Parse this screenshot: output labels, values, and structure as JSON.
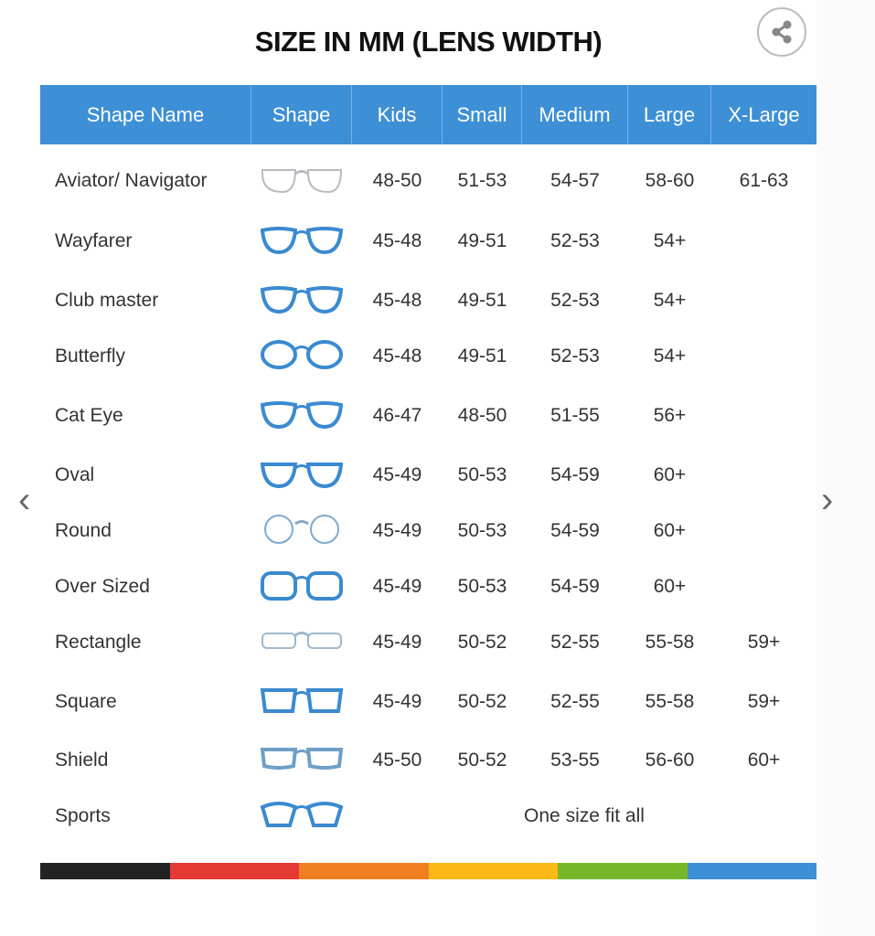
{
  "title": "SIZE IN MM (LENS WIDTH)",
  "share_icon": "share-icon",
  "columns": [
    "Shape Name",
    "Shape",
    "Kids",
    "Small",
    "Medium",
    "Large",
    "X-Large"
  ],
  "rows": [
    {
      "name": "Aviator/ Navigator",
      "icon": "aviator",
      "color": "#b8bcc0",
      "sizes": [
        "48-50",
        "51-53",
        "54-57",
        "58-60",
        "61-63"
      ]
    },
    {
      "name": "Wayfarer",
      "icon": "wayfarer",
      "color": "#3a8ad0",
      "sizes": [
        "45-48",
        "49-51",
        "52-53",
        "54+",
        ""
      ]
    },
    {
      "name": "Club master",
      "icon": "clubmaster",
      "color": "#3a8ad0",
      "sizes": [
        "45-48",
        "49-51",
        "52-53",
        "54+",
        ""
      ]
    },
    {
      "name": "Butterfly",
      "icon": "butterfly",
      "color": "#3a8ad0",
      "sizes": [
        "45-48",
        "49-51",
        "52-53",
        "54+",
        ""
      ]
    },
    {
      "name": "Cat Eye",
      "icon": "cateye",
      "color": "#3a8ad0",
      "sizes": [
        "46-47",
        "48-50",
        "51-55",
        "56+",
        ""
      ]
    },
    {
      "name": "Oval",
      "icon": "oval",
      "color": "#3a8ad0",
      "sizes": [
        "45-49",
        "50-53",
        "54-59",
        "60+",
        ""
      ]
    },
    {
      "name": "Round",
      "icon": "round",
      "color": "#7fa9cf",
      "sizes": [
        "45-49",
        "50-53",
        "54-59",
        "60+",
        ""
      ]
    },
    {
      "name": "Over Sized",
      "icon": "oversized",
      "color": "#3a8ad0",
      "sizes": [
        "45-49",
        "50-53",
        "54-59",
        "60+",
        ""
      ]
    },
    {
      "name": "Rectangle",
      "icon": "rectangle",
      "color": "#9fb8cc",
      "sizes": [
        "45-49",
        "50-52",
        "52-55",
        "55-58",
        "59+"
      ]
    },
    {
      "name": "Square",
      "icon": "square",
      "color": "#3a8ad0",
      "sizes": [
        "45-49",
        "50-52",
        "52-55",
        "55-58",
        "59+"
      ]
    },
    {
      "name": "Shield",
      "icon": "shield",
      "color": "#6f9fc8",
      "sizes": [
        "45-50",
        "50-52",
        "53-55",
        "56-60",
        "60+"
      ]
    },
    {
      "name": "Sports",
      "icon": "sports",
      "color": "#3a8ad0",
      "sizes": [],
      "note": "One size fit all"
    }
  ],
  "stripe_colors": [
    "#222222",
    "#e53935",
    "#f07f22",
    "#fbb917",
    "#76b82a",
    "#3d8fd6"
  ],
  "nav": {
    "prev": "‹",
    "next": "›"
  },
  "colors": {
    "header": "#3d8fd6"
  }
}
